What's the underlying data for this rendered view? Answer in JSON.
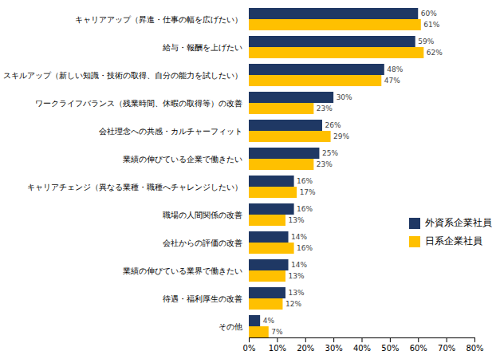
{
  "chart_data": {
    "type": "bar",
    "orientation": "horizontal",
    "categories": [
      "キャリアアップ（昇進・仕事の幅を広げたい）",
      "給与・報酬を上げたい",
      "スキルアップ（新しい知識・技術の取得、自分の能力を試したい）",
      "ワークライフバランス（残業時間、休暇の取得等）の改善",
      "会社理念への共感・カルチャーフィット",
      "業績の伸びている企業で働きたい",
      "キャリアチェンジ（異なる業種・職種へチャレンジしたい）",
      "職場の人間関係の改善",
      "会社からの評価の改善",
      "業績の伸びている業界で働きたい",
      "待遇・福利厚生の改善",
      "その他"
    ],
    "series": [
      {
        "name": "外資系企業社員",
        "color": "#1f3864",
        "values": [
          60,
          59,
          48,
          30,
          26,
          25,
          16,
          16,
          14,
          14,
          13,
          4
        ],
        "value_labels": [
          "60%",
          "59%",
          "48%",
          "30%",
          "26%",
          "25%",
          "16%",
          "16%",
          "14%",
          "14%",
          "13%",
          "4%"
        ]
      },
      {
        "name": "日系企業社員",
        "color": "#ffc000",
        "values": [
          61,
          62,
          47,
          23,
          29,
          23,
          17,
          13,
          16,
          13,
          12,
          7
        ],
        "value_labels": [
          "61%",
          "62%",
          "47%",
          "23%",
          "29%",
          "23%",
          "17%",
          "13%",
          "16%",
          "13%",
          "12%",
          "7%"
        ]
      }
    ],
    "xlim": [
      0,
      80
    ],
    "xticks": [
      {
        "value": 0,
        "label": "0%"
      },
      {
        "value": 10,
        "label": "10%"
      },
      {
        "value": 20,
        "label": "20%"
      },
      {
        "value": 30,
        "label": "30%"
      },
      {
        "value": 40,
        "label": "40%"
      },
      {
        "value": 50,
        "label": "50%"
      },
      {
        "value": 60,
        "label": "60%"
      },
      {
        "value": 70,
        "label": "70%"
      },
      {
        "value": 80,
        "label": "80%"
      }
    ],
    "data_labels": true,
    "legend": "right"
  }
}
